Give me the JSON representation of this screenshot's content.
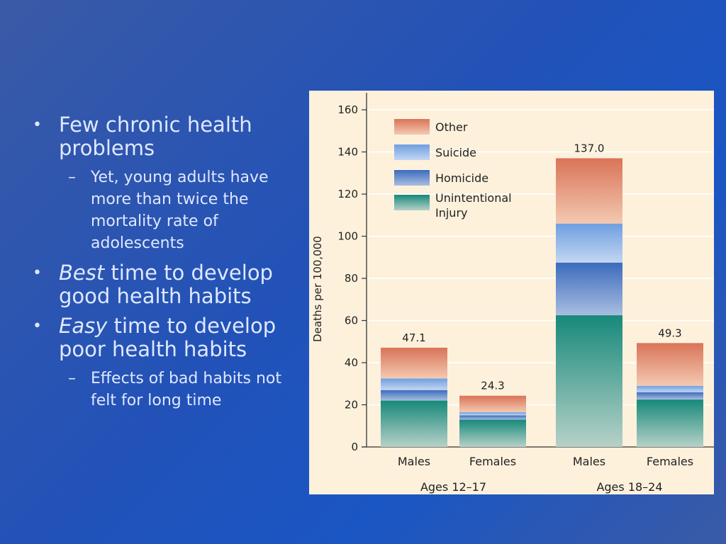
{
  "bullets": {
    "b1": "Few chronic health problems",
    "b1_sub": "Yet, young adults have more than twice the mortality rate of adolescents",
    "b2_em": "Best",
    "b2_rest": " time to develop good health habits",
    "b3_em": "Easy",
    "b3_rest": " time to develop poor health habits",
    "b3_sub": "Effects of bad habits not felt for long time"
  },
  "chart_data": {
    "type": "bar",
    "stacked": true,
    "ylabel": "Deaths per 100,000",
    "ylim": [
      0,
      160
    ],
    "yticks": [
      0,
      20,
      40,
      60,
      80,
      100,
      120,
      140,
      160
    ],
    "grid": true,
    "legend_position": "top-left",
    "categories": [
      "Males",
      "Females",
      "Males",
      "Females"
    ],
    "groups": [
      {
        "label": "Ages 12–17",
        "categories": [
          0,
          1
        ]
      },
      {
        "label": "Ages 18–24",
        "categories": [
          2,
          3
        ]
      }
    ],
    "totals": [
      "47.1",
      "24.3",
      "137.0",
      "49.3"
    ],
    "series": [
      {
        "name": "Unintentional Injury",
        "color_top": "#16897a",
        "color_bottom": "#b7d1c8",
        "values": [
          22,
          13,
          62.5,
          22.5
        ]
      },
      {
        "name": "Homicide",
        "color_top": "#3b6bbd",
        "color_bottom": "#a9bde0",
        "values": [
          5,
          2,
          25,
          3.5
        ]
      },
      {
        "name": "Suicide",
        "color_top": "#6e9fe0",
        "color_bottom": "#c3d6f2",
        "values": [
          5.5,
          1.5,
          18.5,
          3
        ]
      },
      {
        "name": "Other",
        "color_top": "#d97458",
        "color_bottom": "#f3c9b1",
        "values": [
          14.6,
          7.8,
          31,
          20.3
        ]
      }
    ],
    "legend_order": [
      "Other",
      "Suicide",
      "Homicide",
      "Unintentional Injury"
    ]
  }
}
